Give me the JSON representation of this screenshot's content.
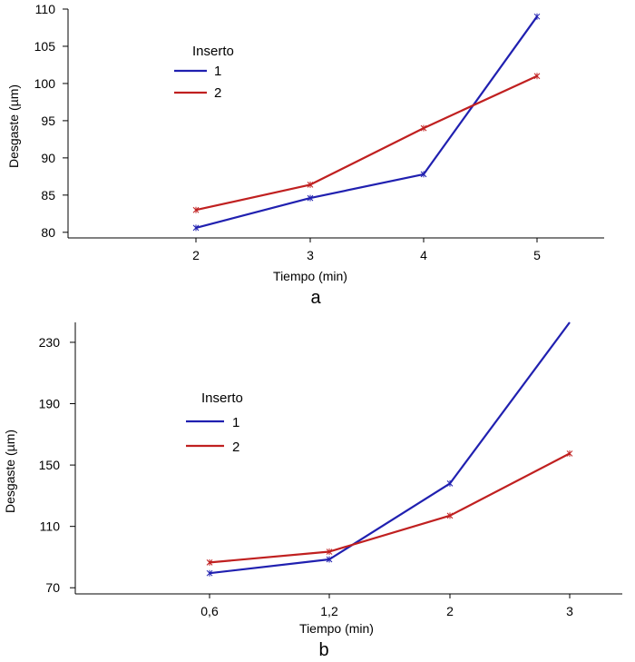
{
  "chart_data": [
    {
      "id": "a",
      "type": "line",
      "panel_label": "a",
      "xlabel": "Tiempo (min)",
      "ylabel": "Desgaste (µm)",
      "categories": [
        "2",
        "3",
        "4",
        "5"
      ],
      "ylim": [
        79,
        110
      ],
      "yticks": [
        80,
        85,
        90,
        95,
        100,
        105,
        110
      ],
      "legend_title": "Inserto",
      "legend_position": "top-left",
      "grid": false,
      "series": [
        {
          "name": "1",
          "color": "#2020b0",
          "values": [
            80.6,
            84.6,
            87.8,
            109.0
          ]
        },
        {
          "name": "2",
          "color": "#c02020",
          "values": [
            83.0,
            86.4,
            94.0,
            101.0
          ]
        }
      ]
    },
    {
      "id": "b",
      "type": "line",
      "panel_label": "b",
      "xlabel": "Tiempo (min)",
      "ylabel": "Desgaste (µm)",
      "categories": [
        "0,6",
        "1,2",
        "2",
        "3"
      ],
      "ylim": [
        66,
        243
      ],
      "yticks": [
        70,
        110,
        150,
        190,
        230
      ],
      "legend_title": "Inserto",
      "legend_position": "top-left",
      "grid": false,
      "series": [
        {
          "name": "1",
          "color": "#2020b0",
          "values": [
            79.5,
            88.5,
            138.0,
            243.0
          ]
        },
        {
          "name": "2",
          "color": "#c02020",
          "values": [
            86.5,
            93.5,
            117.0,
            157.5
          ]
        }
      ]
    }
  ]
}
